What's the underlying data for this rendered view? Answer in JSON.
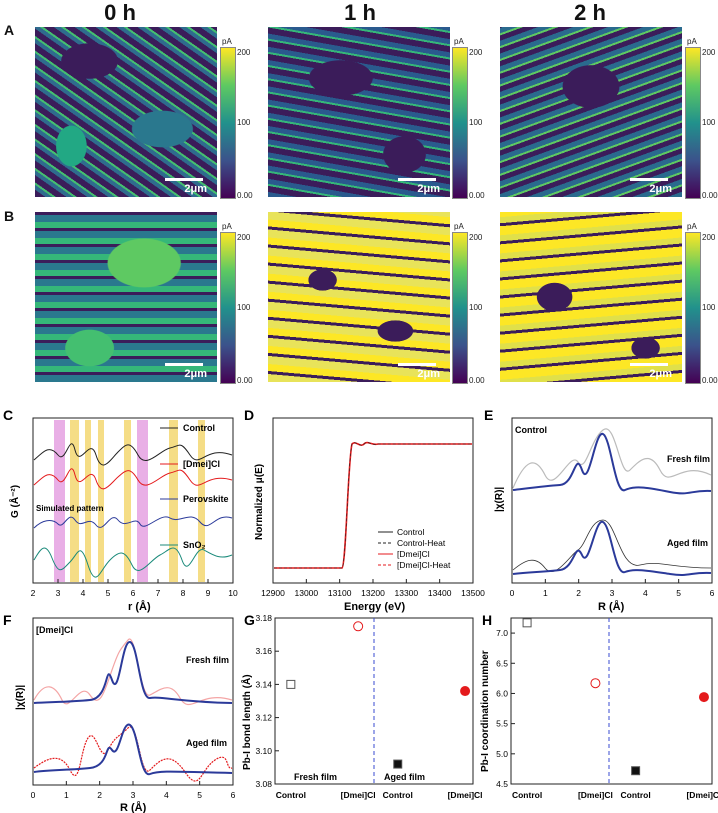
{
  "colors": {
    "red": "#e41a1c",
    "navy": "#2b3a9a",
    "gray": "#bbbbbb",
    "pink": "#e39be0",
    "yellow": "#f5dd86",
    "teal": "#1a8a7a",
    "dash_blue": "#3a4bd0"
  },
  "col_titles": [
    "0 h",
    "1 h",
    "2 h"
  ],
  "row_labels": [
    "A",
    "B"
  ],
  "colorbar": {
    "unit": "pA",
    "max": "200",
    "mid": "100",
    "min": "0.00"
  },
  "scalebar": "2μm",
  "panels": {
    "C": {
      "label": "C",
      "legend": [
        "Control",
        "[Dmei]Cl",
        "Perovskite",
        "SnO₂"
      ],
      "sim_label": "Simulated pattern",
      "ylabel": "G (Å⁻²)",
      "xlabel": "r (Å)",
      "xticks": [
        "2",
        "3",
        "4",
        "5",
        "6",
        "7",
        "8",
        "9",
        "10"
      ]
    },
    "D": {
      "label": "D",
      "ylabel": "Normalized μ(E)",
      "xlabel": "Energy (eV)",
      "xticks": [
        "12900",
        "13000",
        "13100",
        "13200",
        "13300",
        "13400",
        "13500"
      ],
      "legend": [
        "Control",
        "Control-Heat",
        "[Dmei]Cl",
        "[Dmei]Cl-Heat"
      ]
    },
    "E": {
      "label": "E",
      "inset": "Control",
      "top_label": "Fresh film",
      "bottom_label": "Aged film",
      "ylabel": "|χ(R)|",
      "xlabel": "R (Å)",
      "xticks": [
        "0",
        "1",
        "2",
        "3",
        "4",
        "5",
        "6"
      ]
    },
    "F": {
      "label": "F",
      "inset": "[Dmei]Cl",
      "top_label": "Fresh film",
      "bottom_label": "Aged film",
      "ylabel": "|χ(R)|",
      "xlabel": "R (Å)",
      "xticks": [
        "0",
        "1",
        "2",
        "3",
        "4",
        "5",
        "6"
      ]
    },
    "G": {
      "label": "G",
      "ylabel": "Pb-I bond length (Å)",
      "yticks": [
        "3.08",
        "3.10",
        "3.12",
        "3.14",
        "3.16",
        "3.18"
      ],
      "xticks": [
        "Control",
        "[Dmei]Cl",
        "Control",
        "[Dmei]Cl"
      ],
      "left_label": "Fresh film",
      "right_label": "Aged film"
    },
    "H": {
      "label": "H",
      "ylabel": "Pb-I coordination number",
      "yticks": [
        "4.5",
        "5.0",
        "5.5",
        "6.0",
        "6.5",
        "7.0"
      ],
      "xticks": [
        "Control",
        "[Dmei]Cl",
        "Control",
        "[Dmei]Cl"
      ]
    }
  },
  "chart_data": [
    {
      "type": "scatter",
      "panel": "G",
      "categories": [
        "Control",
        "[Dmei]Cl",
        "Control",
        "[Dmei]Cl"
      ],
      "groups": [
        "Fresh film",
        "Fresh film",
        "Aged film",
        "Aged film"
      ],
      "values": [
        3.14,
        3.175,
        3.092,
        3.136
      ],
      "ylim": [
        3.08,
        3.18
      ]
    },
    {
      "type": "scatter",
      "panel": "H",
      "categories": [
        "Control",
        "[Dmei]Cl",
        "Control",
        "[Dmei]Cl"
      ],
      "values": [
        7.17,
        6.17,
        4.72,
        5.94
      ],
      "ylim": [
        4.5,
        7.25
      ]
    }
  ]
}
